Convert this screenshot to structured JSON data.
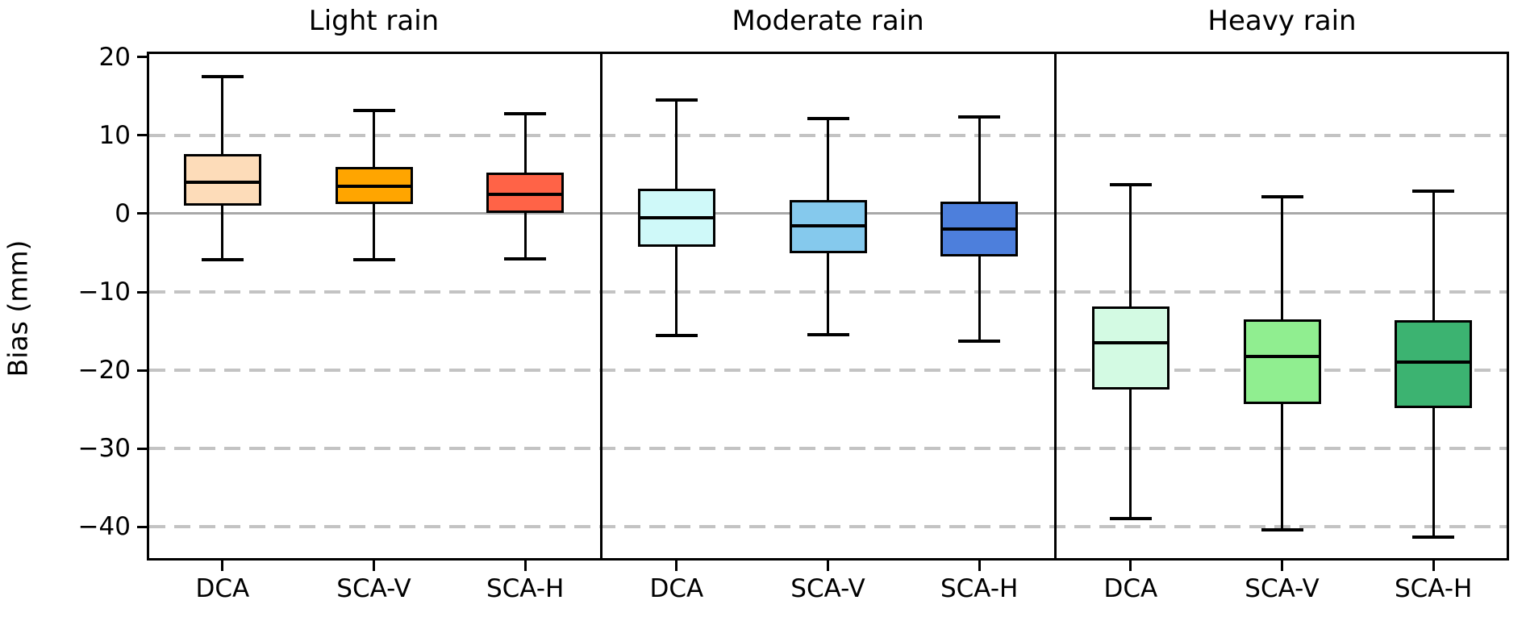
{
  "chart_data": {
    "type": "boxplot",
    "ylabel": "Bias (mm)",
    "yticks": [
      20,
      10,
      0,
      -10,
      -20,
      -30,
      -40
    ],
    "ytick_labels": [
      "20",
      "10",
      "0",
      "−10",
      "−20",
      "−30",
      "−40"
    ],
    "ylim": [
      -44.3,
      20.7
    ],
    "grid": {
      "dashed_ticks": [
        10,
        -10,
        -20,
        -30,
        -40
      ],
      "zero_line": true
    },
    "categories": [
      "DCA",
      "SCA-V",
      "SCA-H"
    ],
    "panels": [
      {
        "title": "Light rain",
        "boxes": [
          {
            "label": "DCA",
            "color": "#FDDCB9",
            "whislo": -5.9,
            "q1": 1.0,
            "med": 4.0,
            "q3": 7.6,
            "whishi": 17.5
          },
          {
            "label": "SCA-V",
            "color": "#FFA500",
            "whislo": -5.9,
            "q1": 1.2,
            "med": 3.5,
            "q3": 6.0,
            "whishi": 13.2
          },
          {
            "label": "SCA-H",
            "color": "#FF6347",
            "whislo": -5.8,
            "q1": 0.1,
            "med": 2.5,
            "q3": 5.2,
            "whishi": 12.8
          }
        ]
      },
      {
        "title": "Moderate rain",
        "boxes": [
          {
            "label": "DCA",
            "color": "#CFF9F9",
            "whislo": -15.6,
            "q1": -4.2,
            "med": -0.5,
            "q3": 3.2,
            "whishi": 14.5
          },
          {
            "label": "SCA-V",
            "color": "#85C9ED",
            "whislo": -15.5,
            "q1": -5.1,
            "med": -1.6,
            "q3": 1.7,
            "whishi": 12.2
          },
          {
            "label": "SCA-H",
            "color": "#4D7FDC",
            "whislo": -16.3,
            "q1": -5.5,
            "med": -2.0,
            "q3": 1.5,
            "whishi": 12.4
          }
        ]
      },
      {
        "title": "Heavy rain",
        "boxes": [
          {
            "label": "DCA",
            "color": "#D3FAE3",
            "whislo": -38.9,
            "q1": -22.5,
            "med": -16.5,
            "q3": -11.9,
            "whishi": 3.7
          },
          {
            "label": "SCA-V",
            "color": "#90EE90",
            "whislo": -40.4,
            "q1": -24.3,
            "med": -18.2,
            "q3": -13.5,
            "whishi": 2.2
          },
          {
            "label": "SCA-H",
            "color": "#3CB371",
            "whislo": -41.3,
            "q1": -24.8,
            "med": -19.0,
            "q3": -13.6,
            "whishi": 2.9
          }
        ]
      }
    ],
    "colors": {
      "grid": "#c3c3c3",
      "zero_line": "#a8a8a8",
      "box_edge": "#000000",
      "text": "#000000"
    }
  }
}
